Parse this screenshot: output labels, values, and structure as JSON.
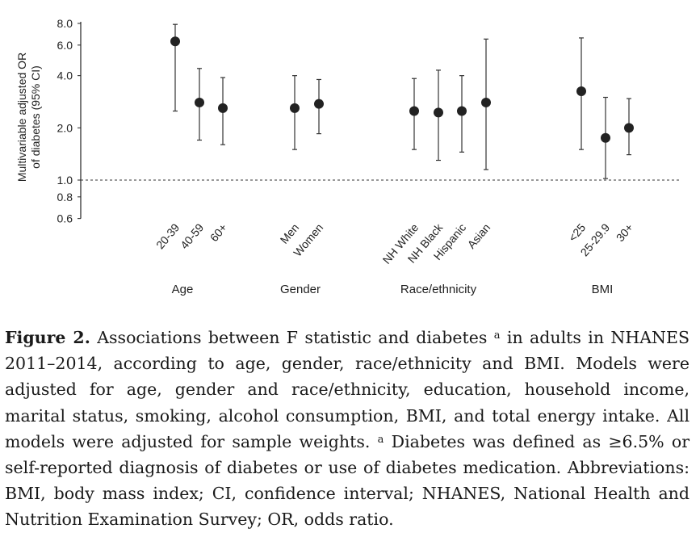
{
  "chart_data": {
    "type": "scatter",
    "ylabel_lines": [
      "Multivariable adjusted OR",
      "of diabetes (95% CI)"
    ],
    "y_scale": "log",
    "ylim": [
      0.6,
      8.0
    ],
    "y_ticks": [
      {
        "value": 0.6,
        "label": "0.6"
      },
      {
        "value": 0.8,
        "label": "0.8"
      },
      {
        "value": 1.0,
        "label": "1.0"
      },
      {
        "value": 2.0,
        "label": "2.0"
      },
      {
        "value": 4.0,
        "label": "4.0"
      },
      {
        "value": 6.0,
        "label": "6.0"
      },
      {
        "value": 8.0,
        "label": "8.0"
      }
    ],
    "reference_line": 1.0,
    "groups": [
      {
        "name": "Age",
        "points": [
          {
            "label": "20-39",
            "or": 6.3,
            "lower": 2.5,
            "upper": 7.9
          },
          {
            "label": "40-59",
            "or": 2.8,
            "lower": 1.7,
            "upper": 4.4
          },
          {
            "label": "60+",
            "or": 2.6,
            "lower": 1.6,
            "upper": 3.9
          }
        ]
      },
      {
        "name": "Gender",
        "points": [
          {
            "label": "Men",
            "or": 2.6,
            "lower": 1.5,
            "upper": 4.0
          },
          {
            "label": "Women",
            "or": 2.75,
            "lower": 1.85,
            "upper": 3.8
          }
        ]
      },
      {
        "name": "Race/ethnicity",
        "points": [
          {
            "label": "NH White",
            "or": 2.5,
            "lower": 1.5,
            "upper": 3.85
          },
          {
            "label": "NH Black",
            "or": 2.45,
            "lower": 1.3,
            "upper": 4.3
          },
          {
            "label": "Hispanic",
            "or": 2.5,
            "lower": 1.45,
            "upper": 4.0
          },
          {
            "label": "Asian",
            "or": 2.8,
            "lower": 1.15,
            "upper": 6.5
          }
        ]
      },
      {
        "name": "BMI",
        "points": [
          {
            "label": "<25",
            "or": 3.25,
            "lower": 1.5,
            "upper": 6.6
          },
          {
            "label": "25-29.9",
            "or": 1.75,
            "lower": 1.02,
            "upper": 3.0
          },
          {
            "label": "30+",
            "or": 2.0,
            "lower": 1.4,
            "upper": 2.95
          }
        ]
      }
    ]
  },
  "caption": {
    "figure_label": "Figure 2.",
    "text_before_sup": " Associations between F statistic and diabetes ",
    "sup1": "a",
    "text_after_sup1": " in adults in NHANES 2011–2014, according to age, gender, race/ethnicity and BMI. Models were adjusted for age, gender and race/ethnicity, education, household income, marital status, smoking, alcohol consumption, BMI, and total energy intake. All models were adjusted for sample weights. ",
    "sup2": "a",
    "text_after_sup2": " Diabetes was defined as ≥6.5% or self-reported diagnosis of diabetes or use of diabetes medication. Abbreviations: BMI, body mass index; CI, confidence interval; NHANES, National Health and Nutrition Examination Survey; OR, odds ratio."
  }
}
